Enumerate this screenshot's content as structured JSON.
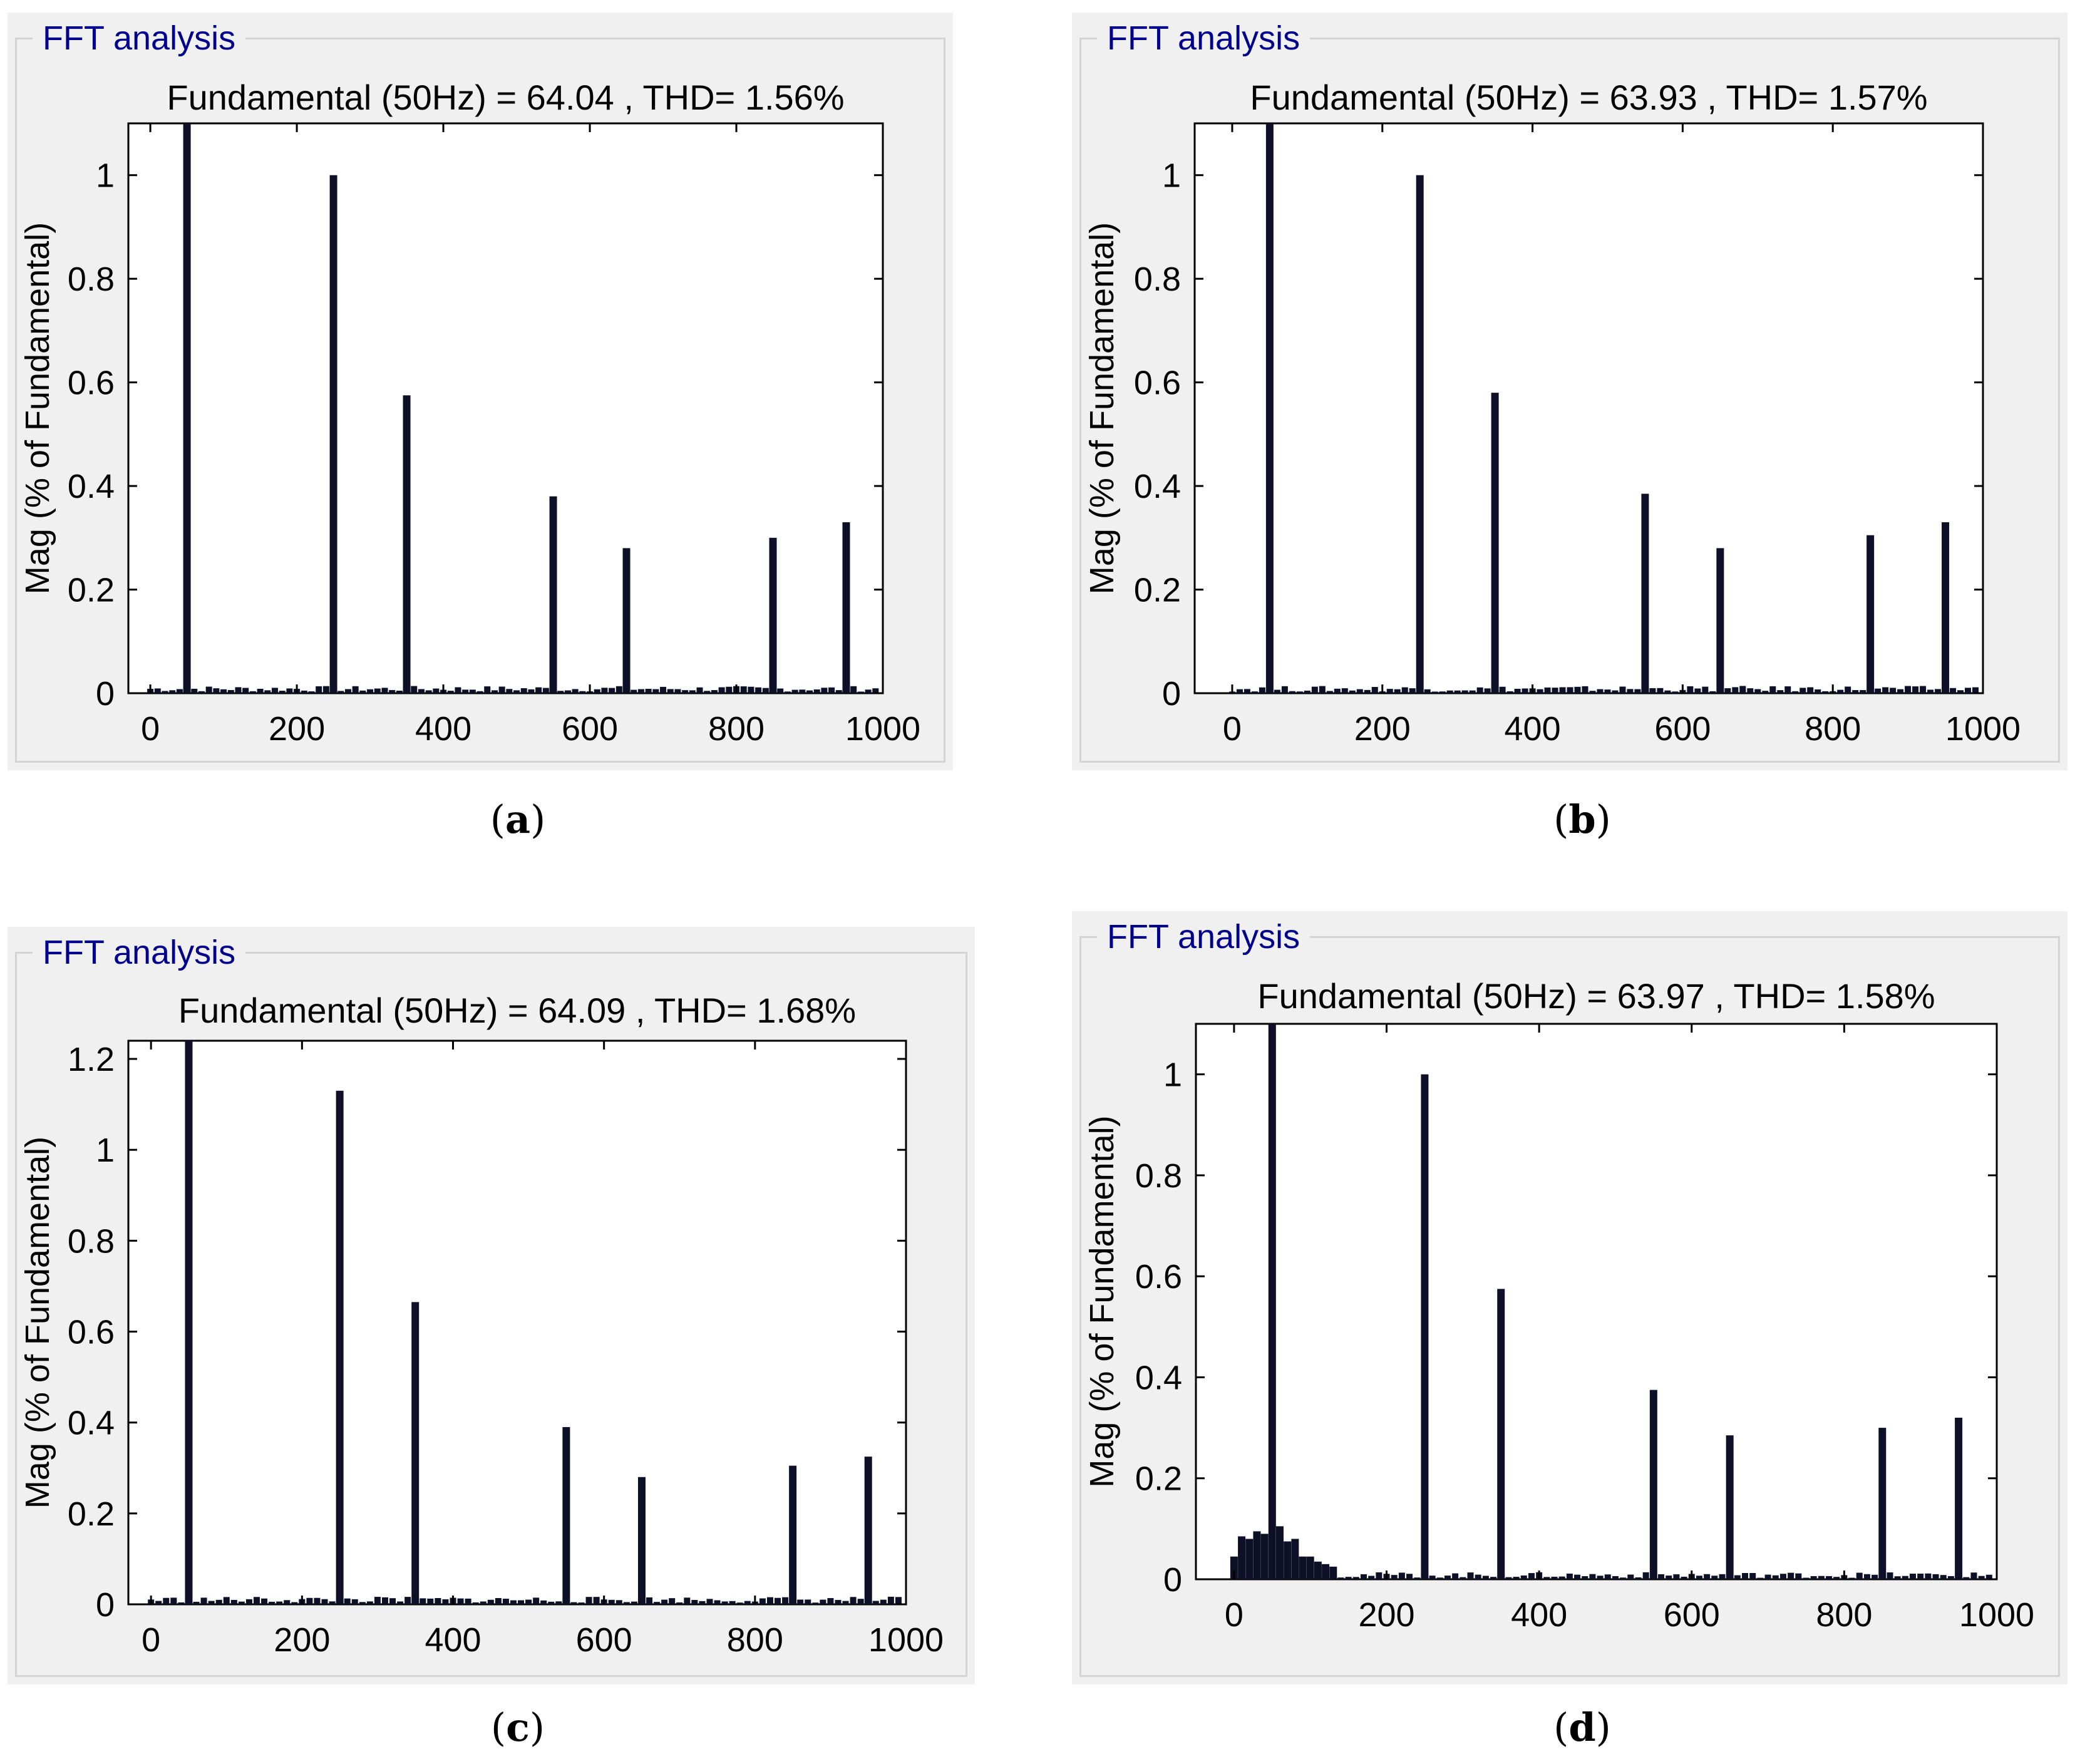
{
  "panels": [
    {
      "id": "a",
      "legend": "FFT analysis",
      "caption_letter": "a"
    },
    {
      "id": "b",
      "legend": "FFT analysis",
      "caption_letter": "b"
    },
    {
      "id": "c",
      "legend": "FFT analysis",
      "caption_letter": "c"
    },
    {
      "id": "d",
      "legend": "FFT analysis",
      "caption_letter": "d"
    }
  ],
  "colors": {
    "bar": "#0d1026",
    "panel_bg": "#f0f0f0",
    "legend_text": "#00008c"
  },
  "chart_data": [
    {
      "type": "bar",
      "title": "Fundamental (50Hz) = 64.04 , THD= 1.56%",
      "xlabel": "",
      "ylabel": "Mag (% of Fundamental)",
      "xlim": [
        -30,
        1000
      ],
      "ylim": [
        0,
        1.1
      ],
      "xticks": [
        0,
        200,
        400,
        600,
        800,
        1000
      ],
      "yticks": [
        0,
        0.2,
        0.4,
        0.6,
        0.8,
        1
      ],
      "grid": false,
      "x": [
        50,
        250,
        350,
        550,
        650,
        850,
        950
      ],
      "values": [
        1.1,
        1.0,
        0.575,
        0.38,
        0.28,
        0.3,
        0.33
      ],
      "noise_floor": 0.01,
      "fundamental_clipped": true
    },
    {
      "type": "bar",
      "title": "Fundamental (50Hz) = 63.93 , THD= 1.57%",
      "xlabel": "",
      "ylabel": "Mag (% of Fundamental)",
      "xlim": [
        -50,
        1000
      ],
      "ylim": [
        0,
        1.1
      ],
      "xticks": [
        0,
        200,
        400,
        600,
        800,
        1000
      ],
      "yticks": [
        0,
        0.2,
        0.4,
        0.6,
        0.8,
        1
      ],
      "grid": false,
      "x": [
        50,
        250,
        350,
        550,
        650,
        850,
        950
      ],
      "values": [
        1.1,
        1.0,
        0.58,
        0.385,
        0.28,
        0.305,
        0.33
      ],
      "noise_floor": 0.01,
      "fundamental_clipped": true
    },
    {
      "type": "bar",
      "title": "Fundamental (50Hz) = 64.09 , THD= 1.68%",
      "xlabel": "",
      "ylabel": "Mag (% of Fundamental)",
      "xlim": [
        -30,
        1000
      ],
      "ylim": [
        0,
        1.24
      ],
      "xticks": [
        0,
        200,
        400,
        600,
        800,
        1000
      ],
      "yticks": [
        0,
        0.2,
        0.4,
        0.6,
        0.8,
        1,
        1.2
      ],
      "grid": false,
      "x": [
        50,
        250,
        350,
        550,
        650,
        850,
        950
      ],
      "values": [
        1.24,
        1.13,
        0.665,
        0.39,
        0.28,
        0.305,
        0.325
      ],
      "noise_floor": 0.012,
      "fundamental_clipped": true
    },
    {
      "type": "bar",
      "title": "Fundamental (50Hz) = 63.97 , THD= 1.58%",
      "xlabel": "",
      "ylabel": "Mag (% of Fundamental)",
      "xlim": [
        -50,
        1000
      ],
      "ylim": [
        0,
        1.1
      ],
      "xticks": [
        0,
        200,
        400,
        600,
        800,
        1000
      ],
      "yticks": [
        0,
        0.2,
        0.4,
        0.6,
        0.8,
        1
      ],
      "grid": false,
      "x": [
        50,
        250,
        350,
        550,
        650,
        850,
        950
      ],
      "values": [
        1.1,
        1.0,
        0.575,
        0.375,
        0.285,
        0.3,
        0.32
      ],
      "noise_floor": 0.01,
      "fundamental_clipped": true,
      "low_freq_x": [
        0,
        10,
        20,
        30,
        40,
        60,
        70,
        80,
        90,
        100,
        110,
        120,
        130
      ],
      "low_freq_values": [
        0.045,
        0.085,
        0.08,
        0.095,
        0.09,
        0.105,
        0.075,
        0.08,
        0.045,
        0.045,
        0.035,
        0.03,
        0.025
      ]
    }
  ]
}
